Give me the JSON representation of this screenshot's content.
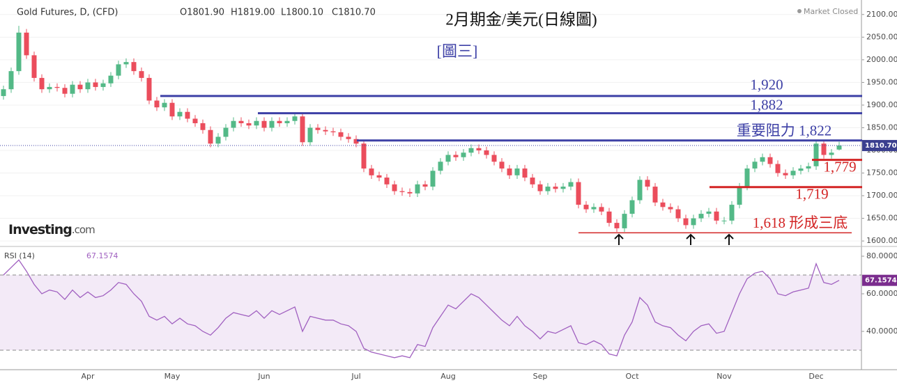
{
  "chart_data": {
    "type": "candlestick",
    "title": "2月期金/美元(日線圖)",
    "subtitle": "[圖三]",
    "symbol": "Gold Futures, D, (CFD)",
    "ohlc_header": [
      "O1801.90",
      "H1819.00",
      "L1800.10",
      "C1810.70"
    ],
    "status": "Market Closed",
    "watermark": [
      "Investing",
      ".com"
    ],
    "up_color": "#53b987",
    "down_color": "#eb4d5c",
    "categories": [
      null,
      null,
      null,
      null,
      null,
      null,
      null,
      null,
      null,
      null,
      null,
      "Apr",
      null,
      null,
      null,
      null,
      null,
      null,
      null,
      null,
      null,
      null,
      "May",
      null,
      null,
      null,
      null,
      null,
      null,
      null,
      null,
      null,
      null,
      null,
      "Jun",
      null,
      null,
      null,
      null,
      null,
      null,
      null,
      null,
      null,
      null,
      null,
      "Jul",
      null,
      null,
      null,
      null,
      null,
      null,
      null,
      null,
      null,
      null,
      null,
      "Aug",
      null,
      null,
      null,
      null,
      null,
      null,
      null,
      null,
      null,
      null,
      null,
      "Sep",
      null,
      null,
      null,
      null,
      null,
      null,
      null,
      null,
      null,
      null,
      null,
      "Oct",
      null,
      null,
      null,
      null,
      null,
      null,
      null,
      null,
      null,
      null,
      null,
      "Nov",
      null,
      null,
      null,
      null,
      null,
      null,
      null,
      null,
      null,
      null,
      null,
      "Dec",
      null,
      null,
      null
    ],
    "open": [
      1920,
      1935,
      1975,
      2060,
      2010,
      1960,
      1935,
      1940,
      1938,
      1925,
      1945,
      1935,
      1950,
      1940,
      1948,
      1965,
      1990,
      1995,
      1975,
      1960,
      1910,
      1895,
      1905,
      1875,
      1885,
      1870,
      1860,
      1845,
      1815,
      1830,
      1850,
      1865,
      1860,
      1855,
      1865,
      1850,
      1865,
      1860,
      1865,
      1875,
      1818,
      1850,
      1845,
      1842,
      1840,
      1830,
      1825,
      1815,
      1760,
      1745,
      1740,
      1725,
      1710,
      1708,
      1705,
      1725,
      1720,
      1755,
      1775,
      1790,
      1785,
      1795,
      1805,
      1800,
      1790,
      1775,
      1760,
      1745,
      1760,
      1740,
      1725,
      1710,
      1720,
      1715,
      1720,
      1730,
      1680,
      1670,
      1675,
      1665,
      1640,
      1628,
      1660,
      1690,
      1735,
      1720,
      1685,
      1675,
      1670,
      1650,
      1635,
      1650,
      1660,
      1665,
      1645,
      1645,
      1680,
      1720,
      1760,
      1775,
      1785,
      1770,
      1750,
      1745,
      1755,
      1760,
      1765,
      1815,
      1790,
      1801.9
    ],
    "high": [
      1943,
      1983,
      2075,
      2068,
      2018,
      1968,
      1948,
      1948,
      1946,
      1953,
      1953,
      1958,
      1958,
      1956,
      1973,
      1998,
      2003,
      2003,
      1983,
      1968,
      1918,
      1913,
      1913,
      1893,
      1893,
      1878,
      1868,
      1853,
      1838,
      1858,
      1873,
      1873,
      1868,
      1873,
      1873,
      1873,
      1873,
      1873,
      1883,
      1883,
      1858,
      1858,
      1853,
      1850,
      1848,
      1838,
      1833,
      1823,
      1768,
      1753,
      1748,
      1733,
      1718,
      1716,
      1733,
      1733,
      1763,
      1783,
      1798,
      1798,
      1803,
      1813,
      1813,
      1808,
      1798,
      1783,
      1768,
      1768,
      1768,
      1748,
      1733,
      1728,
      1728,
      1728,
      1738,
      1738,
      1688,
      1683,
      1683,
      1673,
      1648,
      1668,
      1698,
      1743,
      1743,
      1728,
      1693,
      1683,
      1678,
      1658,
      1658,
      1668,
      1673,
      1673,
      1653,
      1688,
      1728,
      1768,
      1783,
      1793,
      1793,
      1778,
      1758,
      1763,
      1768,
      1773,
      1823,
      1823,
      1803,
      1819
    ],
    "low": [
      1912,
      1927,
      1967,
      2002,
      1952,
      1927,
      1927,
      1930,
      1917,
      1917,
      1927,
      1927,
      1932,
      1932,
      1940,
      1957,
      1982,
      1967,
      1952,
      1902,
      1887,
      1887,
      1867,
      1867,
      1862,
      1852,
      1837,
      1807,
      1807,
      1822,
      1842,
      1852,
      1847,
      1847,
      1842,
      1842,
      1852,
      1852,
      1857,
      1810,
      1810,
      1837,
      1834,
      1832,
      1822,
      1817,
      1807,
      1752,
      1737,
      1732,
      1717,
      1702,
      1700,
      1697,
      1697,
      1712,
      1712,
      1747,
      1767,
      1777,
      1777,
      1787,
      1792,
      1782,
      1767,
      1752,
      1737,
      1737,
      1732,
      1717,
      1702,
      1702,
      1707,
      1707,
      1712,
      1672,
      1662,
      1662,
      1657,
      1632,
      1620,
      1620,
      1652,
      1682,
      1712,
      1677,
      1667,
      1662,
      1642,
      1627,
      1627,
      1642,
      1652,
      1637,
      1637,
      1637,
      1672,
      1712,
      1752,
      1767,
      1762,
      1742,
      1737,
      1737,
      1747,
      1752,
      1757,
      1782,
      1782,
      1800.1
    ],
    "close": [
      1935,
      1975,
      2060,
      2010,
      1960,
      1935,
      1940,
      1938,
      1925,
      1945,
      1935,
      1950,
      1940,
      1948,
      1965,
      1990,
      1995,
      1975,
      1960,
      1910,
      1895,
      1905,
      1875,
      1885,
      1870,
      1860,
      1845,
      1815,
      1830,
      1850,
      1865,
      1860,
      1855,
      1865,
      1850,
      1865,
      1860,
      1865,
      1875,
      1818,
      1850,
      1845,
      1842,
      1840,
      1830,
      1825,
      1815,
      1760,
      1745,
      1740,
      1725,
      1710,
      1708,
      1705,
      1725,
      1720,
      1755,
      1775,
      1790,
      1785,
      1795,
      1805,
      1800,
      1790,
      1775,
      1760,
      1745,
      1760,
      1740,
      1725,
      1710,
      1720,
      1715,
      1720,
      1730,
      1680,
      1670,
      1675,
      1665,
      1640,
      1628,
      1660,
      1690,
      1735,
      1720,
      1685,
      1675,
      1670,
      1650,
      1635,
      1650,
      1660,
      1665,
      1645,
      1645,
      1680,
      1720,
      1760,
      1775,
      1785,
      1770,
      1750,
      1745,
      1755,
      1760,
      1765,
      1815,
      1790,
      1795,
      1810.7
    ],
    "ylim": [
      1591,
      2132
    ],
    "yticks": [
      {
        "value": 1600,
        "label": "1600.00"
      },
      {
        "value": 1650,
        "label": "1650.00"
      },
      {
        "value": 1700,
        "label": "1700.00"
      },
      {
        "value": 1750,
        "label": "1750.00"
      },
      {
        "value": 1800,
        "label": "1800.00"
      },
      {
        "value": 1850,
        "label": "1850.00"
      },
      {
        "value": 1900,
        "label": "1900.00"
      },
      {
        "value": 1950,
        "label": "1950.00"
      },
      {
        "value": 2000,
        "label": "2000.00"
      },
      {
        "value": 2050,
        "label": "2050.00"
      },
      {
        "value": 2100,
        "label": "2100.00"
      }
    ],
    "price_tag": {
      "value": 1810.7,
      "label": "1810.70"
    },
    "levels": [
      {
        "value": 1920,
        "label": "1,920",
        "color": "#3d40a6"
      },
      {
        "value": 1882,
        "label": "1,882",
        "color": "#3d40a6"
      },
      {
        "value": 1822,
        "label": "重要阻力 1,822",
        "color": "#3d40a6"
      },
      {
        "value": 1779,
        "label": "1,779",
        "color": "#d32424"
      },
      {
        "value": 1719,
        "label": "1,719",
        "color": "#d32424"
      },
      {
        "value": 1618,
        "label": "1,618 形成三底",
        "color": "#d32424"
      }
    ],
    "rsi": {
      "name": "RSI (14)",
      "color": "#a060c0",
      "values": [
        70,
        74,
        78,
        72,
        65,
        60,
        62,
        61,
        57,
        62,
        58,
        61,
        58,
        59,
        62,
        66,
        65,
        60,
        56,
        48,
        46,
        48,
        44,
        47,
        44,
        43,
        40,
        38,
        42,
        47,
        50,
        49,
        48,
        51,
        47,
        51,
        49,
        51,
        53,
        40,
        48,
        47,
        46,
        46,
        44,
        43,
        40,
        31,
        29,
        28,
        27,
        26,
        27,
        26,
        33,
        32,
        42,
        48,
        54,
        52,
        56,
        60,
        58,
        54,
        50,
        46,
        43,
        48,
        43,
        40,
        36,
        40,
        39,
        41,
        43,
        34,
        33,
        35,
        33,
        28,
        27,
        38,
        45,
        58,
        54,
        45,
        43,
        42,
        38,
        35,
        40,
        43,
        44,
        39,
        40,
        50,
        60,
        68,
        71,
        72,
        68,
        60,
        59,
        61,
        62,
        63,
        76,
        66,
        65,
        67.1574
      ],
      "last_label": "67.1574",
      "band": [
        30,
        70
      ],
      "ylim": [
        20,
        83.7
      ],
      "yticks": [
        {
          "value": 40,
          "label": "40.0000"
        },
        {
          "value": 60,
          "label": "60.0000"
        },
        {
          "value": 80,
          "label": "80.0000"
        }
      ]
    }
  }
}
